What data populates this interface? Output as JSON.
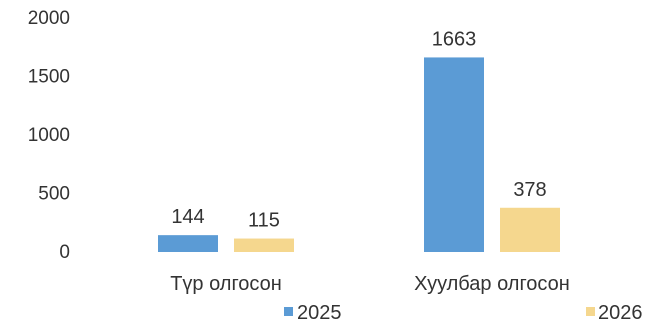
{
  "chart_data": {
    "type": "bar",
    "categories": [
      "Түр олгосон",
      "Хуулбар олгосон"
    ],
    "series": [
      {
        "name": "2025",
        "values": [
          144,
          1663
        ],
        "color": "#5b9bd5"
      },
      {
        "name": "2026",
        "values": [
          115,
          378
        ],
        "color": "#f5d78e"
      }
    ],
    "ylim": [
      0,
      2000
    ],
    "yticks": [
      "0",
      "500",
      "1000",
      "1500",
      "2000"
    ],
    "title": "",
    "xlabel": "",
    "ylabel": "",
    "grid": false,
    "legend": "bottom-right"
  }
}
